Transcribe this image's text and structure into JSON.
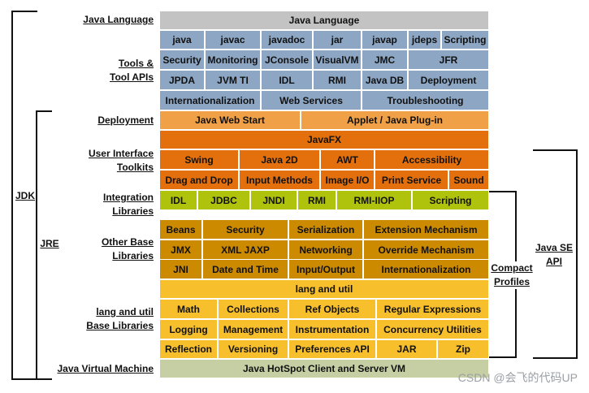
{
  "title": "Java Language",
  "layers": [
    "Java Language",
    "Tools & Tool APIs",
    "Deployment",
    "User Interface Toolkits",
    "Integration Libraries",
    "Other Base Libraries",
    "lang and util Base Libraries",
    "Java Virtual Machine"
  ],
  "brackets": {
    "jdk": "JDK",
    "jre": "JRE",
    "compact": "Compact Profiles",
    "javase": "Java SE API"
  },
  "rows": {
    "lang": [
      "Java Language"
    ],
    "tools1": [
      "java",
      "javac",
      "javadoc",
      "jar",
      "javap",
      "jdeps",
      "Scripting"
    ],
    "tools2": [
      "Security",
      "Monitoring",
      "JConsole",
      "VisualVM",
      "JMC",
      "JFR"
    ],
    "tools3": [
      "JPDA",
      "JVM TI",
      "IDL",
      "RMI",
      "Java DB",
      "Deployment"
    ],
    "tools4": [
      "Internationalization",
      "Web Services",
      "Troubleshooting"
    ],
    "deploy": [
      "Java Web Start",
      "Applet / Java Plug-in"
    ],
    "javafx": [
      "JavaFX"
    ],
    "ui1": [
      "Swing",
      "Java 2D",
      "AWT",
      "Accessibility"
    ],
    "ui2": [
      "Drag and Drop",
      "Input Methods",
      "Image I/O",
      "Print Service",
      "Sound"
    ],
    "integ": [
      "IDL",
      "JDBC",
      "JNDI",
      "RMI",
      "RMI-IIOP",
      "Scripting"
    ],
    "other1": [
      "Beans",
      "Security",
      "Serialization",
      "Extension Mechanism"
    ],
    "other2": [
      "JMX",
      "XML JAXP",
      "Networking",
      "Override Mechanism"
    ],
    "other3": [
      "JNI",
      "Date and Time",
      "Input/Output",
      "Internationalization"
    ],
    "langutil": [
      "lang and util"
    ],
    "lu1": [
      "Math",
      "Collections",
      "Ref Objects",
      "Regular Expressions"
    ],
    "lu2": [
      "Logging",
      "Management",
      "Instrumentation",
      "Concurrency Utilities"
    ],
    "lu3": [
      "Reflection",
      "Versioning",
      "Preferences API",
      "JAR",
      "Zip"
    ],
    "jvm": [
      "Java HotSpot Client and Server VM"
    ]
  },
  "colors": {
    "lang": "#c3c3c3",
    "tools": "#8ca6c4",
    "deploy": "#f0a046",
    "ui": "#e3700c",
    "integ": "#b0c30c",
    "other": "#cc8a00",
    "langutil": "#f7bf2b",
    "jvm": "#c5cfa3"
  },
  "watermark": "CSDN @会飞的代码UP"
}
